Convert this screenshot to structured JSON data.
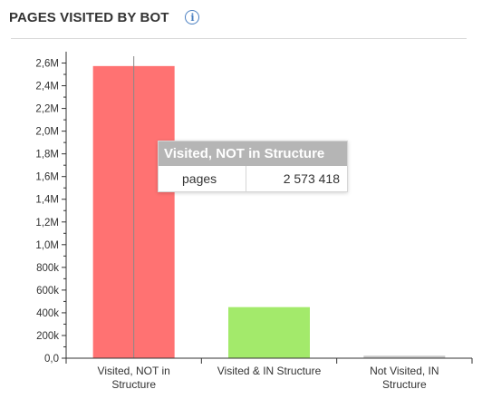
{
  "header": {
    "title": "PAGES VISITED BY BOT",
    "info_icon": "info-circle-icon"
  },
  "colors": {
    "visited_not_in_structure": "#ff7272",
    "visited_in_structure": "#a3ea6b",
    "not_visited_in_structure": "#c8c8c8"
  },
  "chart_data": {
    "type": "bar",
    "categories": [
      "Visited, NOT in|Structure",
      "Visited & IN Structure",
      "Not Visited, IN|Structure"
    ],
    "values": [
      2573418,
      450000,
      22000
    ],
    "ylim": [
      0,
      2700000
    ],
    "yticks": [
      0,
      200000,
      400000,
      600000,
      800000,
      1000000,
      1200000,
      1400000,
      1600000,
      1800000,
      2000000,
      2200000,
      2400000,
      2600000
    ],
    "ytick_labels": [
      "0,0",
      "200k",
      "400k",
      "600k",
      "800k",
      "1,0M",
      "1,2M",
      "1,4M",
      "1,6M",
      "1,8M",
      "2,0M",
      "2,2M",
      "2,4M",
      "2,6M"
    ],
    "title": "",
    "xlabel": "",
    "ylabel": "",
    "grid": false
  },
  "tooltip": {
    "title": "Visited, NOT in Structure",
    "label": "pages",
    "value": "2 573 418"
  }
}
